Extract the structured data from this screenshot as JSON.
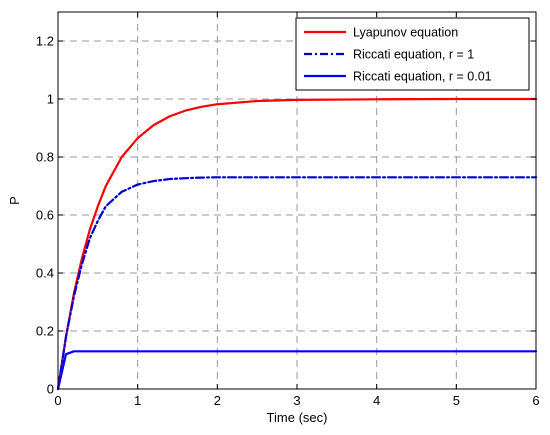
{
  "chart_data": {
    "type": "line",
    "xlabel": "Time (sec)",
    "ylabel": "P",
    "xlim": [
      0,
      6
    ],
    "ylim": [
      0,
      1.3
    ],
    "xticks": [
      "0",
      "1",
      "2",
      "3",
      "4",
      "5",
      "6"
    ],
    "yticks": [
      "0",
      "0.2",
      "0.4",
      "0.6",
      "0.8",
      "1",
      "1.2"
    ],
    "grid": true,
    "legend_position": "top-right",
    "x": [
      0,
      0.1,
      0.2,
      0.3,
      0.4,
      0.5,
      0.6,
      0.8,
      1.0,
      1.2,
      1.4,
      1.6,
      1.8,
      2.0,
      2.5,
      3.0,
      4.0,
      5.0,
      6.0
    ],
    "series": [
      {
        "name": "Lyapunov equation",
        "color": "#ff0000",
        "style": "solid",
        "values": [
          0,
          0.18,
          0.33,
          0.45,
          0.55,
          0.63,
          0.7,
          0.8,
          0.865,
          0.91,
          0.94,
          0.96,
          0.973,
          0.982,
          0.993,
          0.997,
          0.999,
          1.0,
          1.0
        ]
      },
      {
        "name": "Riccati equation, r = 1",
        "color": "#0000cc",
        "style": "dashdot",
        "values": [
          0,
          0.18,
          0.32,
          0.43,
          0.52,
          0.58,
          0.63,
          0.68,
          0.705,
          0.717,
          0.724,
          0.727,
          0.729,
          0.73,
          0.73,
          0.73,
          0.73,
          0.73,
          0.73
        ]
      },
      {
        "name": "Riccati equation, r = 0.01",
        "color": "#0000ff",
        "style": "solid",
        "values": [
          0,
          0.12,
          0.13,
          0.13,
          0.13,
          0.13,
          0.13,
          0.13,
          0.13,
          0.13,
          0.13,
          0.13,
          0.13,
          0.13,
          0.13,
          0.13,
          0.13,
          0.13,
          0.13
        ]
      }
    ]
  }
}
